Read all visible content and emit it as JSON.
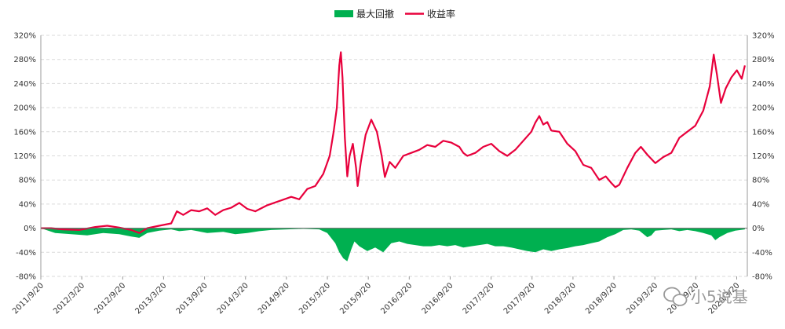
{
  "chart_data": {
    "type": "line",
    "legend": {
      "position": "top-center",
      "entries": [
        {
          "name": "最大回撤",
          "kind": "area",
          "color": "#00b050"
        },
        {
          "name": "收益率",
          "kind": "line",
          "color": "#e8003c"
        }
      ]
    },
    "grid": true,
    "x_tick_labels": [
      "2011/9/20",
      "2012/3/20",
      "2012/9/20",
      "2013/3/20",
      "2013/9/20",
      "2014/3/20",
      "2014/9/20",
      "2015/3/20",
      "2015/9/20",
      "2016/3/20",
      "2016/9/20",
      "2017/3/20",
      "2017/9/20",
      "2018/3/20",
      "2018/9/20",
      "2019/3/20",
      "2019/9/20",
      "2020/3/20"
    ],
    "y_ticks": [
      "320%",
      "280%",
      "240%",
      "200%",
      "160%",
      "120%",
      "80%",
      "40%",
      "0%",
      "-40%",
      "-80%"
    ],
    "ylim": [
      -80,
      320
    ],
    "x_range_years": [
      2011.72,
      2020.55
    ],
    "series": [
      {
        "name": "收益率",
        "axis": "left",
        "points": [
          [
            2011.72,
            0
          ],
          [
            2011.85,
            0
          ],
          [
            2012.0,
            -2
          ],
          [
            2012.2,
            -3
          ],
          [
            2012.4,
            2
          ],
          [
            2012.55,
            4
          ],
          [
            2012.7,
            1
          ],
          [
            2012.85,
            -3
          ],
          [
            2012.95,
            -8
          ],
          [
            2013.05,
            0
          ],
          [
            2013.2,
            4
          ],
          [
            2013.35,
            8
          ],
          [
            2013.42,
            28
          ],
          [
            2013.5,
            22
          ],
          [
            2013.6,
            30
          ],
          [
            2013.7,
            28
          ],
          [
            2013.8,
            33
          ],
          [
            2013.9,
            22
          ],
          [
            2014.0,
            30
          ],
          [
            2014.1,
            34
          ],
          [
            2014.2,
            42
          ],
          [
            2014.3,
            32
          ],
          [
            2014.4,
            28
          ],
          [
            2014.55,
            38
          ],
          [
            2014.7,
            45
          ],
          [
            2014.85,
            52
          ],
          [
            2014.95,
            48
          ],
          [
            2015.05,
            65
          ],
          [
            2015.15,
            70
          ],
          [
            2015.25,
            90
          ],
          [
            2015.33,
            120
          ],
          [
            2015.38,
            160
          ],
          [
            2015.42,
            200
          ],
          [
            2015.45,
            270
          ],
          [
            2015.47,
            292
          ],
          [
            2015.49,
            250
          ],
          [
            2015.52,
            150
          ],
          [
            2015.55,
            86
          ],
          [
            2015.58,
            120
          ],
          [
            2015.62,
            140
          ],
          [
            2015.66,
            100
          ],
          [
            2015.68,
            70
          ],
          [
            2015.72,
            110
          ],
          [
            2015.78,
            155
          ],
          [
            2015.85,
            180
          ],
          [
            2015.92,
            160
          ],
          [
            2015.98,
            120
          ],
          [
            2016.02,
            85
          ],
          [
            2016.08,
            110
          ],
          [
            2016.15,
            100
          ],
          [
            2016.25,
            120
          ],
          [
            2016.35,
            125
          ],
          [
            2016.45,
            130
          ],
          [
            2016.55,
            138
          ],
          [
            2016.65,
            135
          ],
          [
            2016.75,
            145
          ],
          [
            2016.85,
            142
          ],
          [
            2016.95,
            135
          ],
          [
            2017.0,
            125
          ],
          [
            2017.05,
            120
          ],
          [
            2017.15,
            125
          ],
          [
            2017.25,
            135
          ],
          [
            2017.35,
            140
          ],
          [
            2017.45,
            128
          ],
          [
            2017.55,
            120
          ],
          [
            2017.65,
            130
          ],
          [
            2017.75,
            145
          ],
          [
            2017.85,
            160
          ],
          [
            2017.9,
            175
          ],
          [
            2017.95,
            186
          ],
          [
            2018.0,
            172
          ],
          [
            2018.05,
            176
          ],
          [
            2018.1,
            162
          ],
          [
            2018.2,
            160
          ],
          [
            2018.3,
            140
          ],
          [
            2018.4,
            128
          ],
          [
            2018.5,
            105
          ],
          [
            2018.6,
            100
          ],
          [
            2018.7,
            80
          ],
          [
            2018.78,
            86
          ],
          [
            2018.85,
            75
          ],
          [
            2018.9,
            68
          ],
          [
            2018.95,
            72
          ],
          [
            2019.05,
            100
          ],
          [
            2019.15,
            125
          ],
          [
            2019.22,
            135
          ],
          [
            2019.3,
            122
          ],
          [
            2019.4,
            108
          ],
          [
            2019.5,
            118
          ],
          [
            2019.6,
            125
          ],
          [
            2019.7,
            150
          ],
          [
            2019.8,
            160
          ],
          [
            2019.9,
            170
          ],
          [
            2020.0,
            195
          ],
          [
            2020.08,
            235
          ],
          [
            2020.13,
            288
          ],
          [
            2020.17,
            255
          ],
          [
            2020.22,
            208
          ],
          [
            2020.28,
            232
          ],
          [
            2020.35,
            250
          ],
          [
            2020.42,
            262
          ],
          [
            2020.48,
            248
          ],
          [
            2020.52,
            270
          ]
        ]
      },
      {
        "name": "最大回撤",
        "axis": "right",
        "points": [
          [
            2011.72,
            0
          ],
          [
            2011.9,
            -8
          ],
          [
            2012.1,
            -10
          ],
          [
            2012.3,
            -12
          ],
          [
            2012.5,
            -8
          ],
          [
            2012.7,
            -10
          ],
          [
            2012.85,
            -14
          ],
          [
            2012.95,
            -16
          ],
          [
            2013.05,
            -8
          ],
          [
            2013.2,
            -4
          ],
          [
            2013.35,
            -2
          ],
          [
            2013.45,
            -5
          ],
          [
            2013.6,
            -3
          ],
          [
            2013.8,
            -8
          ],
          [
            2014.0,
            -6
          ],
          [
            2014.15,
            -10
          ],
          [
            2014.3,
            -8
          ],
          [
            2014.45,
            -5
          ],
          [
            2014.6,
            -3
          ],
          [
            2014.8,
            -2
          ],
          [
            2015.0,
            -1
          ],
          [
            2015.2,
            -2
          ],
          [
            2015.3,
            -8
          ],
          [
            2015.4,
            -25
          ],
          [
            2015.45,
            -40
          ],
          [
            2015.5,
            -50
          ],
          [
            2015.55,
            -55
          ],
          [
            2015.6,
            -35
          ],
          [
            2015.64,
            -22
          ],
          [
            2015.7,
            -30
          ],
          [
            2015.8,
            -38
          ],
          [
            2015.9,
            -32
          ],
          [
            2016.0,
            -40
          ],
          [
            2016.1,
            -25
          ],
          [
            2016.2,
            -22
          ],
          [
            2016.3,
            -26
          ],
          [
            2016.4,
            -28
          ],
          [
            2016.5,
            -30
          ],
          [
            2016.6,
            -30
          ],
          [
            2016.7,
            -28
          ],
          [
            2016.8,
            -30
          ],
          [
            2016.9,
            -28
          ],
          [
            2017.0,
            -32
          ],
          [
            2017.1,
            -30
          ],
          [
            2017.2,
            -28
          ],
          [
            2017.3,
            -26
          ],
          [
            2017.4,
            -30
          ],
          [
            2017.5,
            -30
          ],
          [
            2017.6,
            -32
          ],
          [
            2017.7,
            -35
          ],
          [
            2017.8,
            -38
          ],
          [
            2017.9,
            -40
          ],
          [
            2018.0,
            -35
          ],
          [
            2018.1,
            -38
          ],
          [
            2018.2,
            -35
          ],
          [
            2018.3,
            -33
          ],
          [
            2018.4,
            -30
          ],
          [
            2018.5,
            -28
          ],
          [
            2018.6,
            -25
          ],
          [
            2018.7,
            -22
          ],
          [
            2018.8,
            -15
          ],
          [
            2018.9,
            -10
          ],
          [
            2019.0,
            -3
          ],
          [
            2019.1,
            -2
          ],
          [
            2019.2,
            -4
          ],
          [
            2019.3,
            -15
          ],
          [
            2019.35,
            -12
          ],
          [
            2019.4,
            -4
          ],
          [
            2019.5,
            -3
          ],
          [
            2019.6,
            -2
          ],
          [
            2019.7,
            -5
          ],
          [
            2019.8,
            -3
          ],
          [
            2019.9,
            -5
          ],
          [
            2020.0,
            -8
          ],
          [
            2020.1,
            -12
          ],
          [
            2020.15,
            -20
          ],
          [
            2020.2,
            -15
          ],
          [
            2020.3,
            -8
          ],
          [
            2020.4,
            -4
          ],
          [
            2020.52,
            -2
          ]
        ]
      }
    ]
  },
  "watermark": "小5说基",
  "watermark_icon": "wechat-icon"
}
